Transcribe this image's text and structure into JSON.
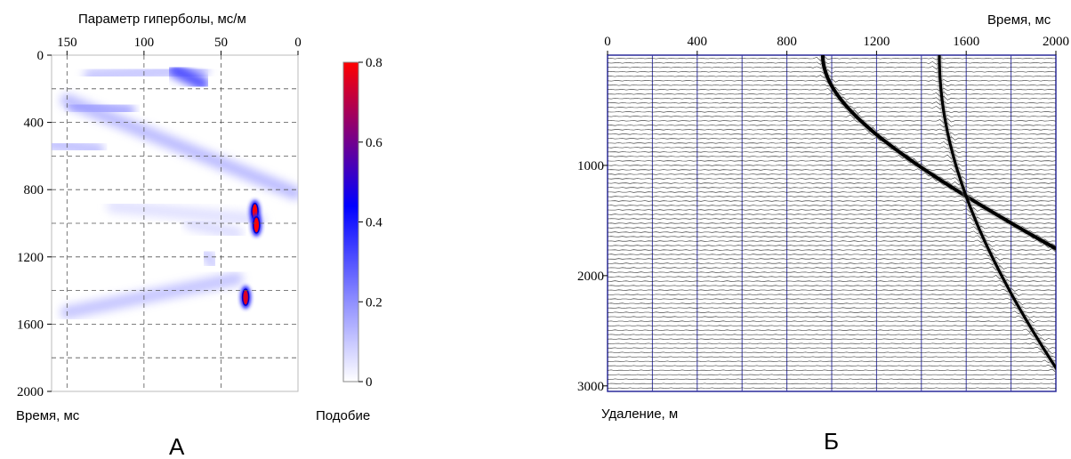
{
  "panels": {
    "a_letter": "А",
    "b_letter": "Б"
  },
  "chart_data": [
    {
      "type": "heatmap",
      "id": "semblance",
      "title": "",
      "xlabel": "Параметр гиперболы, мс/м",
      "ylabel": "Время, мс",
      "xlim": [
        160,
        0
      ],
      "ylim": [
        0,
        2000
      ],
      "x_ticks": [
        150,
        100,
        50,
        0
      ],
      "y_ticks": [
        0,
        400,
        800,
        1200,
        1600,
        2000
      ],
      "grid_x": [
        150,
        100,
        50
      ],
      "grid_y": [
        200,
        400,
        600,
        800,
        1000,
        1200,
        1400,
        1600,
        1800
      ],
      "colorbar": {
        "label": "Подобие",
        "range": [
          0,
          0.8
        ],
        "ticks": [
          0,
          0.2,
          0.4,
          0.6,
          0.8
        ],
        "tick_labels": [
          "0",
          "0.2",
          "0.4",
          "0.6",
          "0.8"
        ],
        "colors": [
          "#ffffff",
          "#8080ff",
          "#0000ff",
          "#ff0000"
        ]
      },
      "bands": [
        {
          "from": [
            135,
            120
          ],
          "to": [
            62,
            90
          ],
          "value": 0.12
        },
        {
          "from": [
            80,
            90
          ],
          "to": [
            62,
            170
          ],
          "value": 0.35
        },
        {
          "from": [
            150,
            270
          ],
          "to": [
            2,
            820
          ],
          "value": 0.14
        },
        {
          "from": [
            145,
            300
          ],
          "to": [
            110,
            330
          ],
          "value": 0.18
        },
        {
          "from": [
            160,
            530
          ],
          "to": [
            130,
            560
          ],
          "value": 0.13
        },
        {
          "from": [
            150,
            1530
          ],
          "to": [
            40,
            1330
          ],
          "value": 0.12
        },
        {
          "from": [
            120,
            900
          ],
          "to": [
            25,
            980
          ],
          "value": 0.06
        },
        {
          "from": [
            70,
            1000
          ],
          "to": [
            40,
            1060
          ],
          "value": 0.07
        },
        {
          "from": [
            60,
            1180
          ],
          "to": [
            55,
            1240
          ],
          "value": 0.1
        }
      ],
      "peaks": [
        {
          "x": 28,
          "y": 930,
          "value": 0.8
        },
        {
          "x": 27,
          "y": 1010,
          "value": 0.8
        },
        {
          "x": 34,
          "y": 1440,
          "value": 0.75
        }
      ]
    },
    {
      "type": "line",
      "id": "gather",
      "title": "",
      "xlabel": "Время, мс",
      "ylabel": "Удаление, м",
      "xlim": [
        0,
        2000
      ],
      "ylim": [
        0,
        3050
      ],
      "x_ticks": [
        0,
        400,
        800,
        1200,
        1600,
        2000
      ],
      "y_ticks": [
        1000,
        2000,
        3000
      ],
      "grid_x": [
        200,
        400,
        600,
        800,
        1000,
        1200,
        1400,
        1600,
        1800
      ],
      "trace_count": 75,
      "events": [
        {
          "name": "",
          "t0": 960,
          "slope": 8.5e-05,
          "quad": 1e-07
        },
        {
          "name": "",
          "t0": 1480,
          "slope": 5e-05,
          "quad": 2.25e-08
        }
      ]
    }
  ]
}
